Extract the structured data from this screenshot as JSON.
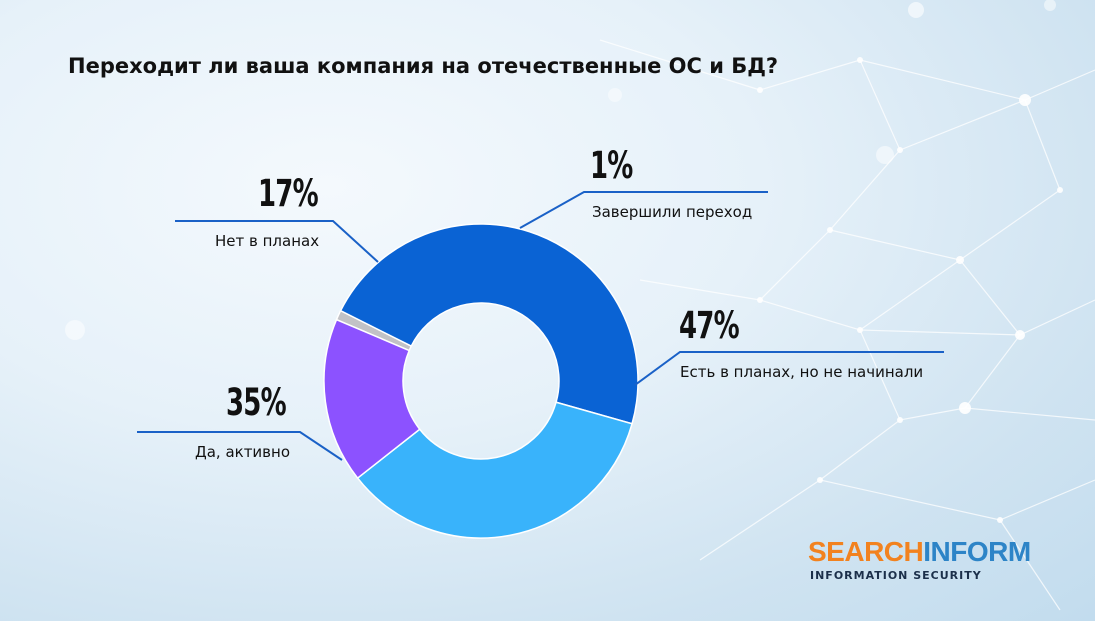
{
  "title": "Переходит ли ваша компания на отечественные ОС и БД?",
  "chart_data": {
    "type": "pie",
    "donut": true,
    "title": "Переходит ли ваша компания на отечественные ОС и БД?",
    "slices": [
      {
        "label": "Завершили переход",
        "value": 1,
        "display": "1%",
        "color": "#c2c2c6"
      },
      {
        "label": "Есть в планах, но не начинали",
        "value": 47,
        "display": "47%",
        "color": "#0a63d4"
      },
      {
        "label": "Да, активно",
        "value": 35,
        "display": "35%",
        "color": "#39b3fb"
      },
      {
        "label": "Нет в планах",
        "value": 17,
        "display": "17%",
        "color": "#8c52ff"
      }
    ],
    "line_color": "#1a61c7"
  },
  "brand": {
    "part1": "SEARCH",
    "part2": "INFORM",
    "tagline": "INFORMATION SECURITY",
    "color1": "#f2821f",
    "color2": "#2d84c7"
  }
}
